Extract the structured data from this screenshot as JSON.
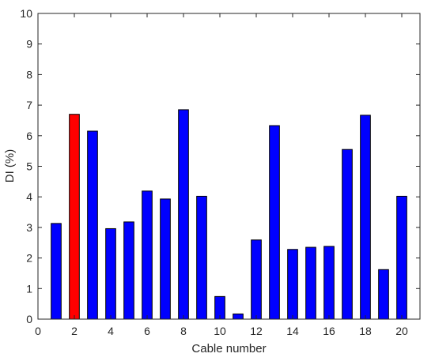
{
  "chart_data": {
    "type": "bar",
    "xlabel": "Cable number",
    "ylabel": "DI (%)",
    "xlim": [
      0,
      21
    ],
    "ylim": [
      0,
      10
    ],
    "x_ticks": [
      "0",
      "2",
      "4",
      "6",
      "8",
      "10",
      "12",
      "14",
      "16",
      "18",
      "20"
    ],
    "y_ticks": [
      "0",
      "1",
      "2",
      "3",
      "4",
      "5",
      "6",
      "7",
      "8",
      "9",
      "10"
    ],
    "grid": false,
    "categories": [
      1,
      2,
      3,
      4,
      5,
      6,
      7,
      8,
      9,
      10,
      11,
      12,
      13,
      14,
      15,
      16,
      17,
      18,
      19,
      20
    ],
    "values": [
      3.13,
      6.7,
      6.15,
      2.96,
      3.18,
      4.19,
      3.93,
      6.85,
      4.02,
      0.74,
      0.17,
      2.59,
      6.33,
      2.28,
      2.35,
      2.38,
      5.55,
      6.67,
      1.62,
      4.02
    ],
    "highlight_index": 1,
    "colors": {
      "bar": "#0000ff",
      "highlight": "#ff0000",
      "edge": "#000000",
      "axis": "#262626"
    }
  }
}
